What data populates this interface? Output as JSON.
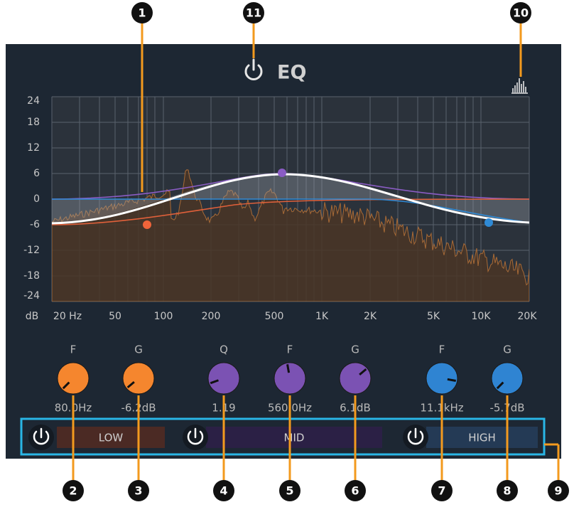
{
  "header": {
    "title": "EQ"
  },
  "graph": {
    "unit": "dB",
    "y_labels": [
      "24",
      "18",
      "12",
      "6",
      "0",
      "-6",
      "-12",
      "-18",
      "-24"
    ],
    "x_labels": [
      "20 Hz",
      "50",
      "100",
      "200",
      "500",
      "1K",
      "2K",
      "5K",
      "10K",
      "20K"
    ]
  },
  "knobs": [
    {
      "label": "F",
      "value": "80.0Hz"
    },
    {
      "label": "G",
      "value": "-6.2dB"
    },
    {
      "label": "Q",
      "value": "1.19"
    },
    {
      "label": "F",
      "value": "560.0Hz"
    },
    {
      "label": "G",
      "value": "6.1dB"
    },
    {
      "label": "F",
      "value": "11.1kHz"
    },
    {
      "label": "G",
      "value": "-5.7dB"
    }
  ],
  "bands": [
    "LOW",
    "MID",
    "HIGH"
  ],
  "callouts": [
    "1",
    "2",
    "3",
    "4",
    "5",
    "6",
    "7",
    "8",
    "9",
    "10",
    "11"
  ]
}
